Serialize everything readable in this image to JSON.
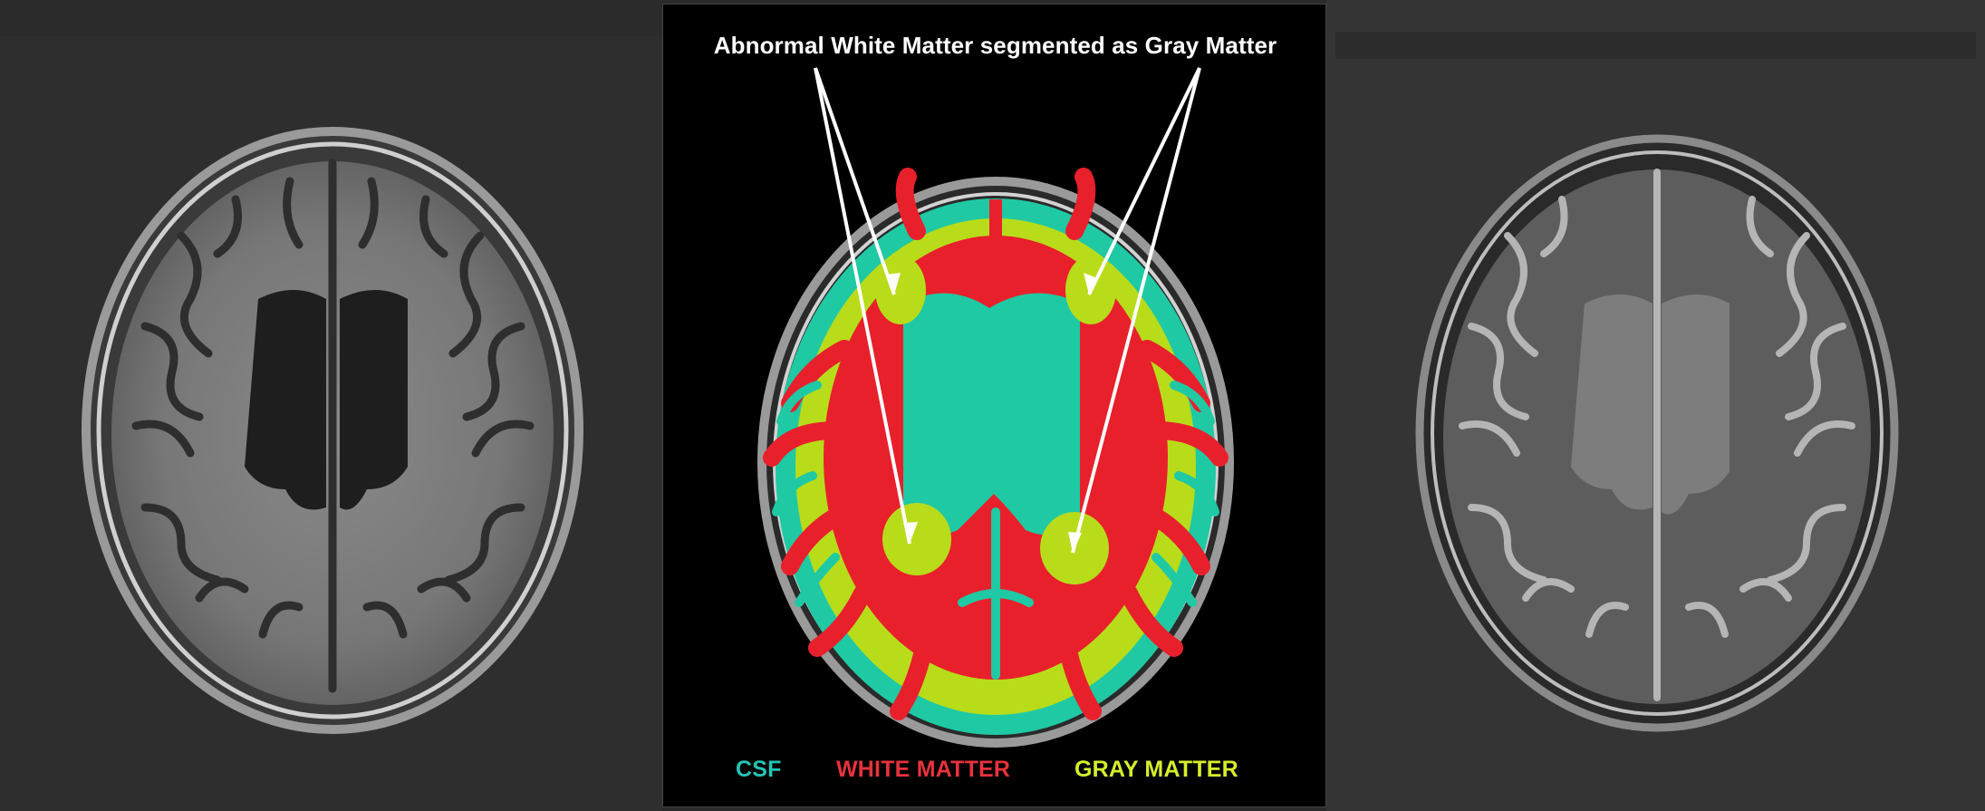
{
  "annotation": {
    "text": "Abnormal White Matter segmented as Gray Matter"
  },
  "legend": {
    "csf": {
      "label": "CSF",
      "color": "#23c4b6"
    },
    "white_matter": {
      "label": "WHITE MATTER",
      "color": "#e8323c"
    },
    "gray_matter": {
      "label": "GRAY MATTER",
      "color": "#d7ee2a"
    }
  },
  "colors": {
    "csf_fill": "#1fc9a4",
    "white_matter_fill": "#e8202b",
    "gray_matter_fill": "#b8dc1a",
    "arrow": "#ffffff",
    "center_background": "#000000"
  },
  "panels": {
    "left": {
      "content": "T1-weighted axial brain MRI"
    },
    "center": {
      "content": "Segmentation overlay axial brain MRI"
    },
    "right": {
      "content": "T2-weighted axial brain MRI"
    }
  }
}
